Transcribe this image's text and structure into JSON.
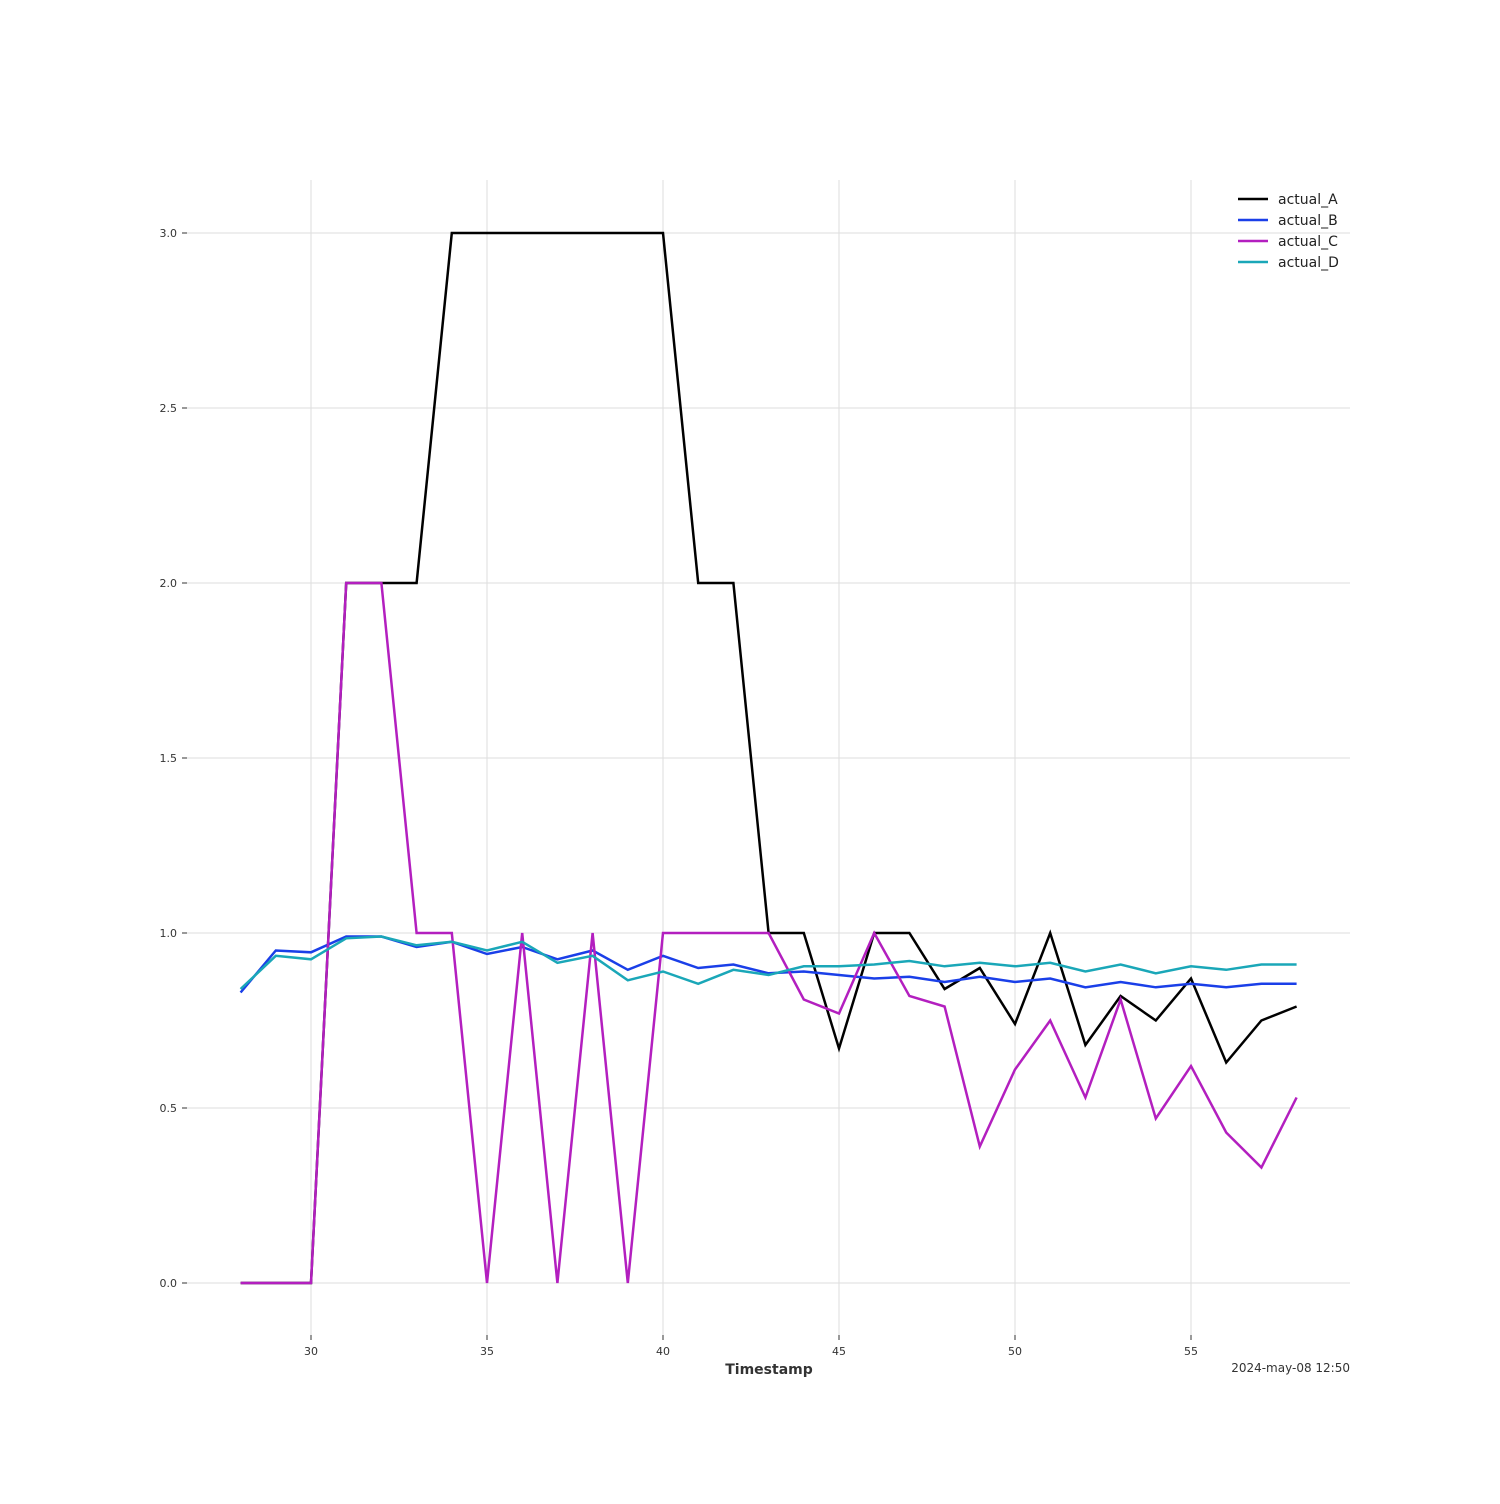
{
  "chart_data": {
    "type": "line",
    "title": "",
    "xlabel": "Timestamp",
    "ylabel": "",
    "footer_text": "2024-may-08 12:50",
    "xlim": [
      26,
      59
    ],
    "ylim": [
      -0.15,
      3.15
    ],
    "x_ticks": [
      30,
      35,
      40,
      45,
      50,
      55
    ],
    "y_ticks": [
      0.0,
      0.5,
      1.0,
      1.5,
      2.0,
      2.5,
      3.0
    ],
    "y_tick_labels": [
      "0.0",
      "0.5",
      "1.0",
      "1.5",
      "2.0",
      "2.5",
      "3.0"
    ],
    "grid": true,
    "legend_position": "top-right",
    "x": [
      28,
      29,
      30,
      31,
      32,
      33,
      34,
      35,
      36,
      37,
      38,
      39,
      40,
      41,
      42,
      43,
      44,
      45,
      46,
      47,
      48,
      49,
      50,
      51,
      52,
      53,
      54,
      55,
      56,
      57,
      58
    ],
    "series": [
      {
        "name": "actual_A",
        "color": "#000000",
        "values": [
          0,
          0,
          0,
          2,
          2,
          2,
          3,
          3,
          3,
          3,
          3,
          3,
          3,
          2,
          2,
          1,
          1,
          0.67,
          1,
          1,
          0.84,
          0.9,
          0.74,
          1,
          0.68,
          0.82,
          0.75,
          0.87,
          0.63,
          0.75,
          0.79
        ]
      },
      {
        "name": "actual_B",
        "color": "#1a3fe8",
        "values": [
          0.83,
          0.95,
          0.945,
          0.99,
          0.99,
          0.96,
          0.975,
          0.94,
          0.96,
          0.925,
          0.95,
          0.895,
          0.935,
          0.9,
          0.91,
          0.885,
          0.89,
          0.88,
          0.87,
          0.875,
          0.86,
          0.875,
          0.86,
          0.87,
          0.845,
          0.86,
          0.845,
          0.855,
          0.845,
          0.855,
          0.855
        ]
      },
      {
        "name": "actual_C",
        "color": "#b31fbf",
        "values": [
          0,
          0,
          0,
          2,
          2,
          1,
          1,
          0,
          1,
          0,
          1,
          0,
          1,
          1,
          1,
          1,
          0.81,
          0.77,
          1,
          0.82,
          0.79,
          0.39,
          0.61,
          0.75,
          0.53,
          0.81,
          0.47,
          0.62,
          0.43,
          0.33,
          0.53
        ]
      },
      {
        "name": "actual_D",
        "color": "#1aa7b8",
        "values": [
          0.84,
          0.935,
          0.925,
          0.985,
          0.99,
          0.965,
          0.975,
          0.95,
          0.975,
          0.915,
          0.935,
          0.865,
          0.89,
          0.855,
          0.895,
          0.88,
          0.905,
          0.905,
          0.91,
          0.92,
          0.905,
          0.915,
          0.905,
          0.915,
          0.89,
          0.91,
          0.885,
          0.905,
          0.895,
          0.91,
          0.91
        ]
      }
    ]
  }
}
